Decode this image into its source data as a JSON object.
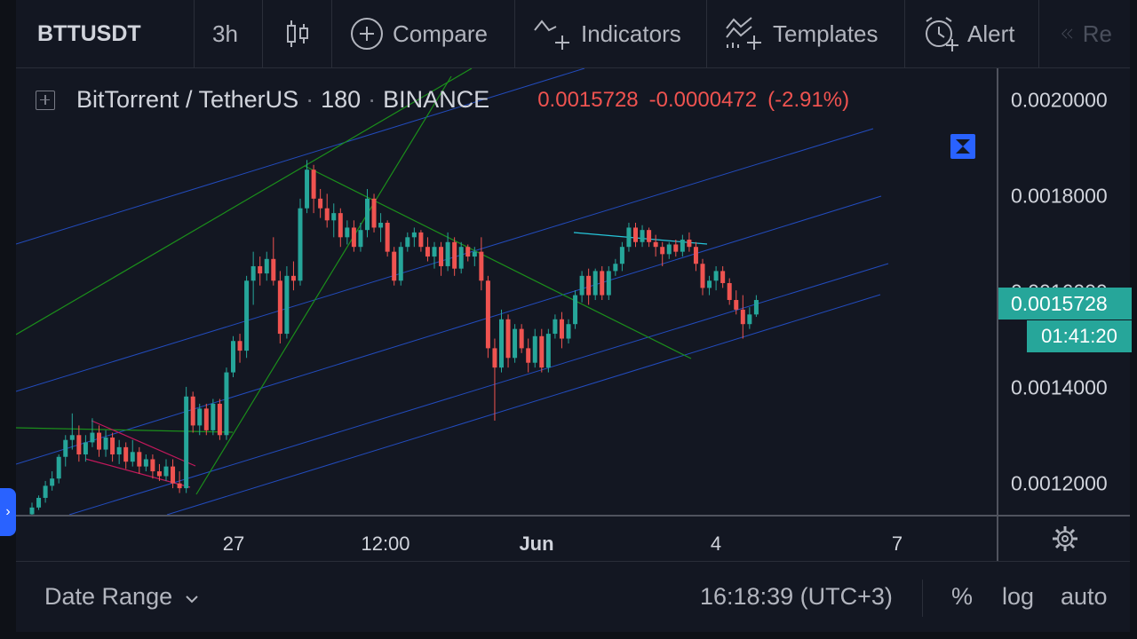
{
  "toolbar": {
    "symbol": "BTTUSDT",
    "interval": "3h",
    "chart_type_icon": "candles-icon",
    "compare": "Compare",
    "indicators": "Indicators",
    "templates": "Templates",
    "alert": "Alert",
    "replay_icon": "rewind-icon",
    "replay": "Re"
  },
  "legend": {
    "name": "BitTorrent / TetherUS",
    "interval": "180",
    "exchange": "BINANCE",
    "last": "0.0015728",
    "change": "-0.0000472",
    "change_pct": "(-2.91%)"
  },
  "price_scale": {
    "ticks": [
      "0.0020000",
      "0.0018000",
      "0.0016000",
      "0.0014000",
      "0.0012000"
    ],
    "last_price": "0.0015728",
    "countdown": "01:41:20"
  },
  "time_scale": {
    "ticks": [
      {
        "label": "27",
        "bold": false
      },
      {
        "label": "12:00",
        "bold": false
      },
      {
        "label": "Jun",
        "bold": true
      },
      {
        "label": "4",
        "bold": false
      },
      {
        "label": "7",
        "bold": false
      }
    ],
    "settings_icon": "gear-icon"
  },
  "bottom_bar": {
    "date_range": "Date Range",
    "clock": "16:18:39 (UTC+3)",
    "percent": "%",
    "log": "log",
    "auto": "auto"
  },
  "colors": {
    "background": "#131722",
    "up": "#26a69a",
    "down": "#ef5350",
    "channel": "#2962ff",
    "trend": "#1b8f1b",
    "flag": "#c2185b"
  },
  "chart_data": {
    "type": "candlestick",
    "symbol": "BTTUSDT",
    "ylim": [
      0.001135,
      0.00206
    ],
    "candles": [
      [
        0.001136,
        0.00116,
        0.001134,
        0.00115
      ],
      [
        0.00115,
        0.001175,
        0.001145,
        0.00117
      ],
      [
        0.00117,
        0.001205,
        0.00116,
        0.001195
      ],
      [
        0.001195,
        0.001225,
        0.001185,
        0.00121
      ],
      [
        0.00121,
        0.00126,
        0.0012,
        0.001255
      ],
      [
        0.001255,
        0.0013,
        0.001235,
        0.00129
      ],
      [
        0.00129,
        0.001345,
        0.00127,
        0.0013
      ],
      [
        0.0013,
        0.00132,
        0.001245,
        0.00126
      ],
      [
        0.00126,
        0.0013,
        0.001245,
        0.001285
      ],
      [
        0.001285,
        0.001335,
        0.001275,
        0.001305
      ],
      [
        0.001305,
        0.00132,
        0.001255,
        0.00127
      ],
      [
        0.00127,
        0.00131,
        0.001255,
        0.001295
      ],
      [
        0.001295,
        0.001305,
        0.001245,
        0.00126
      ],
      [
        0.00126,
        0.00129,
        0.00124,
        0.001275
      ],
      [
        0.001275,
        0.001285,
        0.00123,
        0.001245
      ],
      [
        0.001245,
        0.00129,
        0.001235,
        0.001265
      ],
      [
        0.001265,
        0.001275,
        0.00122,
        0.001235
      ],
      [
        0.001235,
        0.00126,
        0.001225,
        0.00125
      ],
      [
        0.00125,
        0.00126,
        0.00121,
        0.001225
      ],
      [
        0.001225,
        0.00124,
        0.001205,
        0.001215
      ],
      [
        0.001215,
        0.00125,
        0.001205,
        0.001235
      ],
      [
        0.001235,
        0.00125,
        0.00119,
        0.0012
      ],
      [
        0.0012,
        0.001225,
        0.00118,
        0.00119
      ],
      [
        0.00119,
        0.0014,
        0.00118,
        0.00138
      ],
      [
        0.00138,
        0.00139,
        0.001305,
        0.00132
      ],
      [
        0.00132,
        0.001365,
        0.0013,
        0.001355
      ],
      [
        0.001355,
        0.001365,
        0.0013,
        0.00131
      ],
      [
        0.00131,
        0.001375,
        0.0013,
        0.001365
      ],
      [
        0.001365,
        0.001375,
        0.00129,
        0.0013
      ],
      [
        0.0013,
        0.00144,
        0.00129,
        0.00143
      ],
      [
        0.00143,
        0.001505,
        0.00142,
        0.001495
      ],
      [
        0.001495,
        0.00151,
        0.00145,
        0.001475
      ],
      [
        0.001475,
        0.00163,
        0.00146,
        0.00162
      ],
      [
        0.00162,
        0.00168,
        0.00157,
        0.00165
      ],
      [
        0.00165,
        0.00167,
        0.00161,
        0.001635
      ],
      [
        0.001635,
        0.00168,
        0.00162,
        0.001665
      ],
      [
        0.001665,
        0.00171,
        0.00161,
        0.00162
      ],
      [
        0.00162,
        0.00164,
        0.00149,
        0.00151
      ],
      [
        0.00151,
        0.00165,
        0.0015,
        0.00163
      ],
      [
        0.00163,
        0.00166,
        0.0016,
        0.00162
      ],
      [
        0.00162,
        0.00179,
        0.00161,
        0.00177
      ],
      [
        0.00177,
        0.00187,
        0.00176,
        0.00185
      ],
      [
        0.00185,
        0.00186,
        0.00176,
        0.00179
      ],
      [
        0.00179,
        0.00181,
        0.00175,
        0.00177
      ],
      [
        0.00177,
        0.0018,
        0.00173,
        0.001745
      ],
      [
        0.001745,
        0.00178,
        0.00171,
        0.00176
      ],
      [
        0.00176,
        0.00177,
        0.00169,
        0.00171
      ],
      [
        0.00171,
        0.001745,
        0.001695,
        0.00173
      ],
      [
        0.00173,
        0.001745,
        0.00168,
        0.00169
      ],
      [
        0.00169,
        0.00174,
        0.00168,
        0.001725
      ],
      [
        0.001725,
        0.00181,
        0.00171,
        0.00179
      ],
      [
        0.00179,
        0.0018,
        0.00172,
        0.00173
      ],
      [
        0.00173,
        0.00176,
        0.0017,
        0.00174
      ],
      [
        0.00174,
        0.001745,
        0.00167,
        0.00168
      ],
      [
        0.00168,
        0.00169,
        0.00161,
        0.00162
      ],
      [
        0.00162,
        0.0017,
        0.00161,
        0.00169
      ],
      [
        0.00169,
        0.00172,
        0.00168,
        0.00171
      ],
      [
        0.00171,
        0.00173,
        0.00169,
        0.00172
      ],
      [
        0.00172,
        0.001725,
        0.00168,
        0.00169
      ],
      [
        0.00169,
        0.00171,
        0.00166,
        0.00167
      ],
      [
        0.00167,
        0.0017,
        0.001645,
        0.00169
      ],
      [
        0.00169,
        0.0017,
        0.00163,
        0.00165
      ],
      [
        0.00165,
        0.00172,
        0.00164,
        0.0017
      ],
      [
        0.0017,
        0.00171,
        0.00163,
        0.001645
      ],
      [
        0.001645,
        0.0017,
        0.001635,
        0.00169
      ],
      [
        0.00169,
        0.001695,
        0.00166,
        0.00167
      ],
      [
        0.00167,
        0.00169,
        0.00165,
        0.00168
      ],
      [
        0.00168,
        0.00171,
        0.0016,
        0.00162
      ],
      [
        0.00162,
        0.00163,
        0.00146,
        0.00148
      ],
      [
        0.00148,
        0.0015,
        0.00133,
        0.00144
      ],
      [
        0.00144,
        0.00156,
        0.00143,
        0.00154
      ],
      [
        0.00154,
        0.00155,
        0.00144,
        0.00146
      ],
      [
        0.00146,
        0.00153,
        0.00145,
        0.00152
      ],
      [
        0.00152,
        0.00153,
        0.00147,
        0.00148
      ],
      [
        0.00148,
        0.0015,
        0.00143,
        0.00145
      ],
      [
        0.00145,
        0.00152,
        0.00144,
        0.001505
      ],
      [
        0.001505,
        0.00152,
        0.00143,
        0.00144
      ],
      [
        0.00144,
        0.00152,
        0.00143,
        0.00151
      ],
      [
        0.00151,
        0.00155,
        0.0015,
        0.00154
      ],
      [
        0.00154,
        0.001555,
        0.00148,
        0.0015
      ],
      [
        0.0015,
        0.00154,
        0.00149,
        0.00153
      ],
      [
        0.00153,
        0.0016,
        0.00152,
        0.00159
      ],
      [
        0.00159,
        0.00164,
        0.001575,
        0.00163
      ],
      [
        0.00163,
        0.001645,
        0.00157,
        0.00159
      ],
      [
        0.00159,
        0.001645,
        0.00158,
        0.00164
      ],
      [
        0.00164,
        0.00165,
        0.00158,
        0.00159
      ],
      [
        0.00159,
        0.00165,
        0.00158,
        0.00164
      ],
      [
        0.00164,
        0.001665,
        0.00163,
        0.001655
      ],
      [
        0.001655,
        0.0017,
        0.00164,
        0.00169
      ],
      [
        0.00169,
        0.00174,
        0.00168,
        0.00173
      ],
      [
        0.00173,
        0.00174,
        0.00169,
        0.0017
      ],
      [
        0.0017,
        0.001735,
        0.00169,
        0.001725
      ],
      [
        0.001725,
        0.00173,
        0.00169,
        0.0017
      ],
      [
        0.0017,
        0.001715,
        0.00167,
        0.00169
      ],
      [
        0.00169,
        0.0017,
        0.00165,
        0.001675
      ],
      [
        0.001675,
        0.0017,
        0.001665,
        0.001695
      ],
      [
        0.001695,
        0.001705,
        0.00167,
        0.00168
      ],
      [
        0.00168,
        0.001715,
        0.00167,
        0.001705
      ],
      [
        0.001705,
        0.00172,
        0.00168,
        0.00169
      ],
      [
        0.00169,
        0.0017,
        0.00164,
        0.001655
      ],
      [
        0.001655,
        0.001665,
        0.00159,
        0.001605
      ],
      [
        0.001605,
        0.00163,
        0.00159,
        0.00162
      ],
      [
        0.00162,
        0.00165,
        0.0016,
        0.00164
      ],
      [
        0.00164,
        0.00165,
        0.001605,
        0.001615
      ],
      [
        0.001615,
        0.001625,
        0.00157,
        0.00158
      ],
      [
        0.00158,
        0.0016,
        0.00155,
        0.00156
      ],
      [
        0.00156,
        0.00159,
        0.0015,
        0.00153
      ],
      [
        0.00153,
        0.001565,
        0.00152,
        0.00155
      ],
      [
        0.00155,
        0.00159,
        0.001545,
        0.00158
      ]
    ]
  }
}
